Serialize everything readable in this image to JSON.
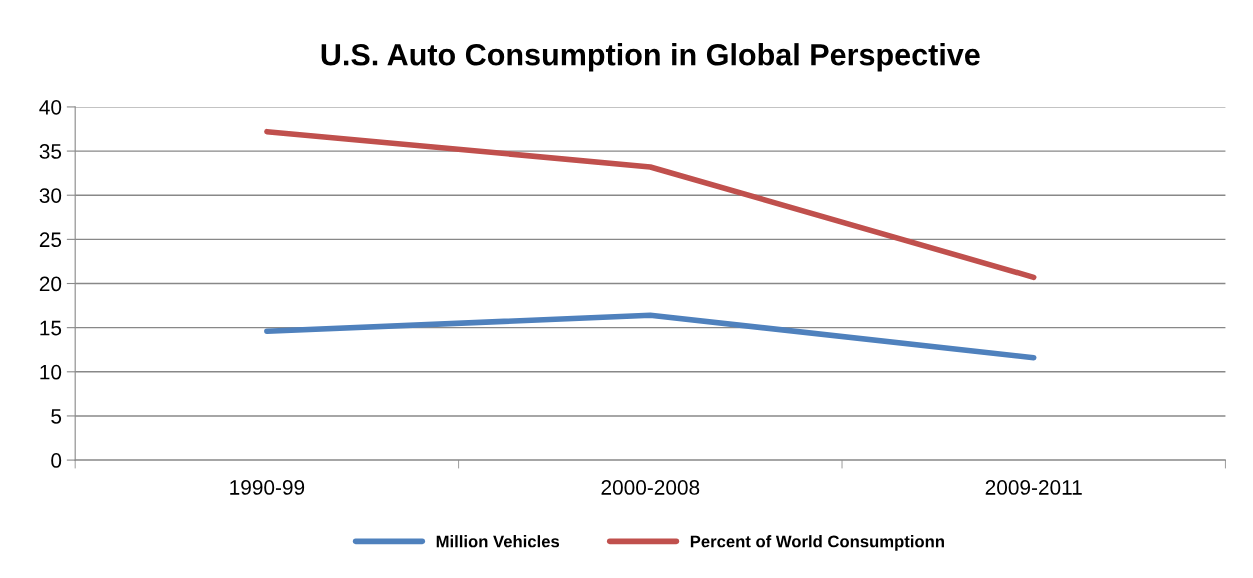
{
  "chart_data": {
    "type": "line",
    "title": "U.S. Auto Consumption in Global Perspective",
    "categories": [
      "1990-99",
      "2000-2008",
      "2009-2011"
    ],
    "series": [
      {
        "name": "Million Vehicles",
        "color": "#4f81bd",
        "values": [
          14.6,
          16.4,
          11.6
        ]
      },
      {
        "name": "Percent of World Consumptionn",
        "color": "#c0504d",
        "values": [
          37.2,
          33.2,
          20.7
        ]
      }
    ],
    "ylim": [
      0,
      40
    ],
    "yticks": [
      0,
      5,
      10,
      15,
      20,
      25,
      30,
      35,
      40
    ],
    "grid": "y",
    "legend": "bottom",
    "marker": "none",
    "line_style": "solid"
  }
}
